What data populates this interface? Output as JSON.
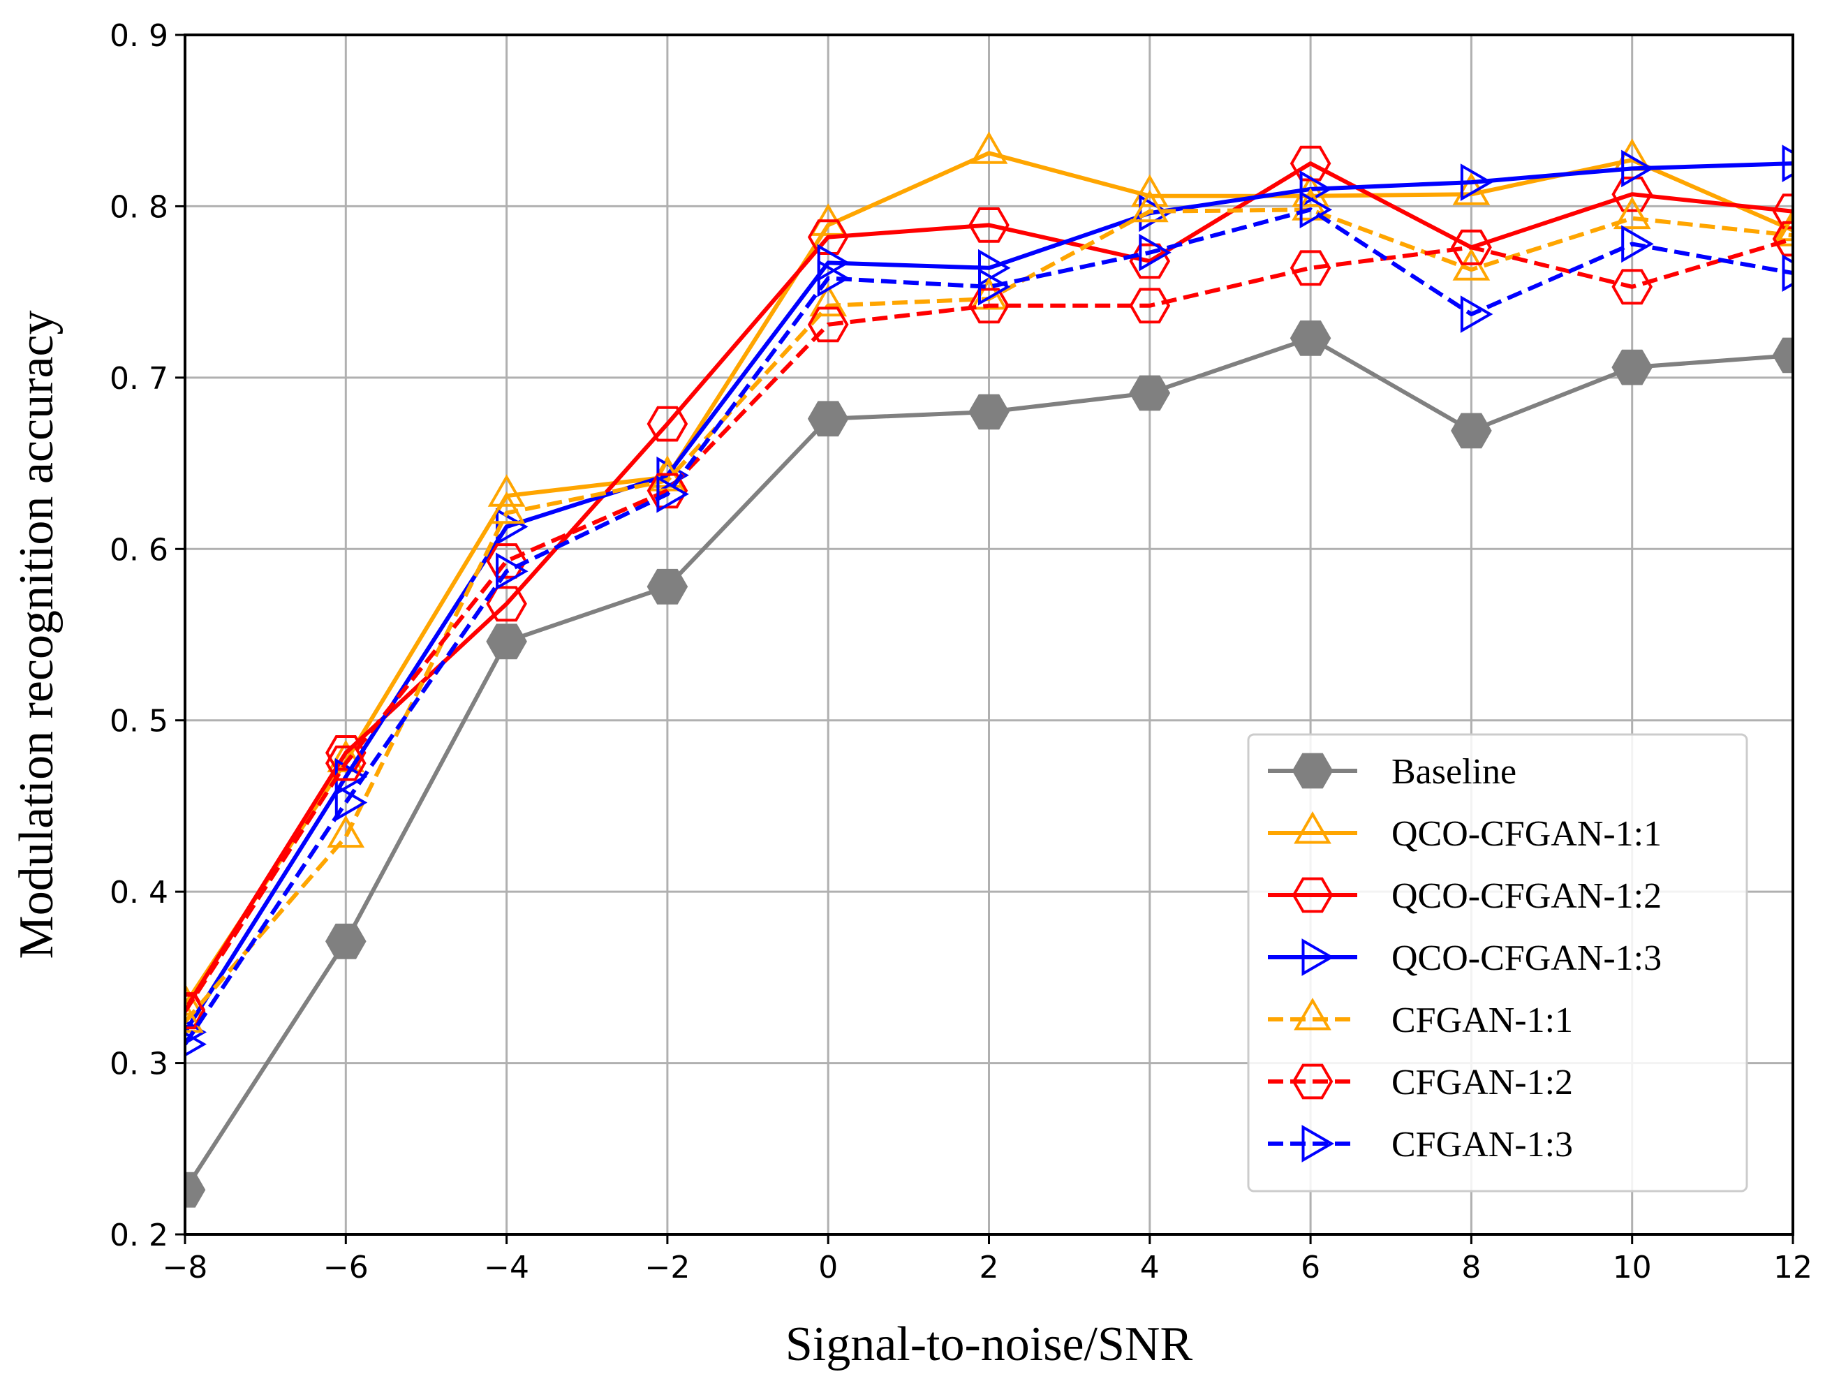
{
  "chart_data": {
    "type": "line",
    "title": "",
    "xlabel": "Signal-to-noise/SNR",
    "ylabel": "Modulation recognition accuracy",
    "xlim": [
      -8,
      12
    ],
    "ylim": [
      0.2,
      0.9
    ],
    "grid": true,
    "legend_position": "bottom-right",
    "x": [
      -8,
      -6,
      -4,
      -2,
      0,
      2,
      4,
      6,
      8,
      10,
      12
    ],
    "x_tick_labels": [
      "−8",
      "−6",
      "−4",
      "−2",
      "0",
      "2",
      "4",
      "6",
      "8",
      "10",
      "12"
    ],
    "y_ticks": [
      0.2,
      0.3,
      0.4,
      0.5,
      0.6,
      0.7,
      0.8,
      0.9
    ],
    "y_tick_labels": [
      "0. 2",
      "0. 3",
      "0. 4",
      "0. 5",
      "0. 6",
      "0. 7",
      "0. 8",
      "0. 9"
    ],
    "series": [
      {
        "name": "Baseline",
        "color": "#808080",
        "dash": "solid",
        "marker": "hexagon-filled",
        "values": [
          0.226,
          0.371,
          0.546,
          0.578,
          0.676,
          0.68,
          0.691,
          0.723,
          0.669,
          0.706,
          0.713
        ]
      },
      {
        "name": "QCO-CFGAN-1:1",
        "color": "#FFA500",
        "dash": "solid",
        "marker": "triangle-up",
        "values": [
          0.334,
          0.476,
          0.631,
          0.642,
          0.789,
          0.831,
          0.806,
          0.806,
          0.807,
          0.827,
          0.786
        ]
      },
      {
        "name": "QCO-CFGAN-1:2",
        "color": "#FF0000",
        "dash": "solid",
        "marker": "hexagon",
        "values": [
          0.331,
          0.481,
          0.568,
          0.673,
          0.782,
          0.789,
          0.768,
          0.825,
          0.776,
          0.807,
          0.797
        ]
      },
      {
        "name": "QCO-CFGAN-1:3",
        "color": "#0000FF",
        "dash": "solid",
        "marker": "triangle-right",
        "values": [
          0.318,
          0.467,
          0.613,
          0.643,
          0.767,
          0.764,
          0.796,
          0.81,
          0.814,
          0.822,
          0.825
        ]
      },
      {
        "name": "CFGAN-1:1",
        "color": "#FFA500",
        "dash": "dashed",
        "marker": "triangle-up",
        "values": [
          0.324,
          0.432,
          0.621,
          0.64,
          0.742,
          0.746,
          0.797,
          0.798,
          0.763,
          0.793,
          0.783
        ]
      },
      {
        "name": "CFGAN-1:2",
        "color": "#FF0000",
        "dash": "dashed",
        "marker": "hexagon",
        "values": [
          0.33,
          0.475,
          0.593,
          0.634,
          0.731,
          0.742,
          0.742,
          0.764,
          0.776,
          0.753,
          0.781
        ]
      },
      {
        "name": "CFGAN-1:3",
        "color": "#0000FF",
        "dash": "dashed",
        "marker": "triangle-right",
        "values": [
          0.311,
          0.452,
          0.587,
          0.632,
          0.758,
          0.753,
          0.773,
          0.798,
          0.737,
          0.778,
          0.761
        ]
      }
    ]
  }
}
